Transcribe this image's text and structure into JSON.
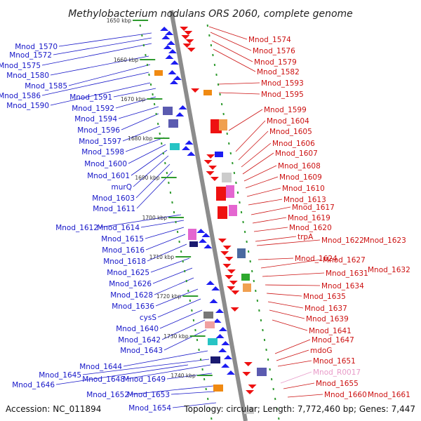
{
  "title": "Methylobacterium nodulans ORS 2060, complete genome",
  "footer": {
    "accession": "Accession: NC_011894",
    "topology": "Topology: circular; Length: 7,772,460 bp; Genes: 7,447"
  },
  "colors": {
    "left_label": "#1616c8",
    "right_label": "#cc1111",
    "pink_label": "#e89ac8",
    "axis": "#8c8c8c",
    "forward_gene": "#1d1df2",
    "reverse_gene": "#ee1111",
    "tick": "#2e9a2e"
  },
  "scale_labels": [
    "1650 kbp",
    "1660 kbp",
    "1670 kbp",
    "1680 kbp",
    "1690 kbp",
    "1700 kbp",
    "1710 kbp",
    "1720 kbp",
    "1730 kbp",
    "1740 kbp"
  ],
  "left_labels": [
    "Mnod_1570",
    "Mnod_1572",
    "Mnod_1575",
    "Mnod_1580",
    "Mnod_1585",
    "Mnod_1586",
    "Mnod_1590",
    "Mnod_1591",
    "Mnod_1592",
    "Mnod_1594",
    "Mnod_1596",
    "Mnod_1597",
    "Mnod_1598",
    "Mnod_1600",
    "Mnod_1601",
    "murQ",
    "Mnod_1603",
    "Mnod_1611",
    "Mnod_1612",
    "Mnod_1614",
    "Mnod_1615",
    "Mnod_1616",
    "Mnod_1618",
    "Mnod_1625",
    "Mnod_1626",
    "Mnod_1628",
    "Mnod_1636",
    "cysS",
    "Mnod_1640",
    "Mnod_1642",
    "Mnod_1643",
    "Mnod_1644",
    "Mnod_1645",
    "Mnod_1648",
    "Mnod_1649",
    "Mnod_1646",
    "Mnod_1652",
    "Mnod_1653",
    "Mnod_1654"
  ],
  "right_labels": [
    "Mnod_1574",
    "Mnod_1576",
    "Mnod_1579",
    "Mnod_1582",
    "Mnod_1593",
    "Mnod_1595",
    "Mnod_1599",
    "Mnod_1604",
    "Mnod_1605",
    "Mnod_1606",
    "Mnod_1607",
    "Mnod_1608",
    "Mnod_1609",
    "Mnod_1610",
    "Mnod_1613",
    "Mnod_1617",
    "Mnod_1619",
    "Mnod_1620",
    "trpA",
    "Mnod_1622",
    "Mnod_1623",
    "Mnod_1624",
    "Mnod_1627",
    "Mnod_1631",
    "Mnod_1632",
    "Mnod_1634",
    "Mnod_1635",
    "Mnod_1637",
    "Mnod_1639",
    "Mnod_1641",
    "Mnod_1647",
    "mdoG",
    "Mnod_1651",
    "Mnod_R0017",
    "Mnod_1655",
    "Mnod_1660",
    "Mnod_1661"
  ]
}
